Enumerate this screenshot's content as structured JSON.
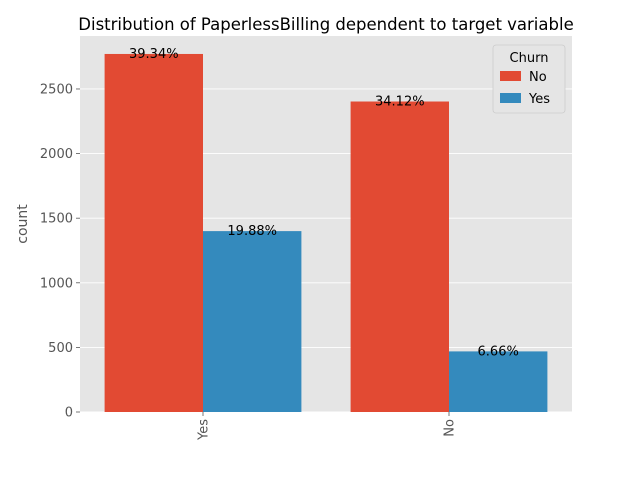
{
  "chart_data": {
    "type": "bar",
    "title": "Distribution of PaperlessBilling dependent to target variable",
    "xlabel": "",
    "ylabel": "count",
    "categories": [
      "Yes",
      "No"
    ],
    "series": [
      {
        "name": "No",
        "values": [
          2771,
          2403
        ],
        "labels": [
          "39.34%",
          "34.12%"
        ],
        "color": "#E24A33"
      },
      {
        "name": "Yes",
        "values": [
          1400,
          469
        ],
        "labels": [
          "19.88%",
          "6.66%"
        ],
        "color": "#348ABD"
      }
    ],
    "ylim": [
      0,
      2910
    ],
    "yticks": [
      0,
      500,
      1000,
      1500,
      2000,
      2500
    ],
    "legend": {
      "title": "Churn",
      "position": "top-right"
    },
    "grid": true,
    "colors": {
      "plot_background": "#E5E5E5",
      "grid": "#FFFFFF"
    }
  }
}
